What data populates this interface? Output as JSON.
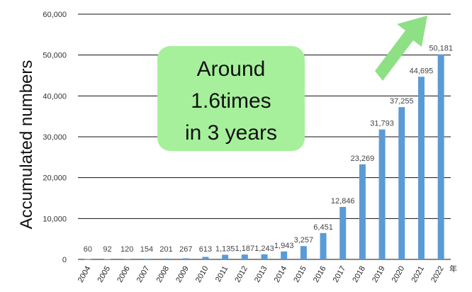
{
  "chart_data": {
    "type": "bar",
    "categories": [
      "2004",
      "2005",
      "2006",
      "2007",
      "2008",
      "2009",
      "2010",
      "2011",
      "2012",
      "2013",
      "2014",
      "2015",
      "2016",
      "2017",
      "2018",
      "2019",
      "2020",
      "2021",
      "2022"
    ],
    "values": [
      60,
      92,
      120,
      154,
      201,
      267,
      613,
      1135,
      1187,
      1243,
      1943,
      3257,
      6451,
      12846,
      23269,
      31793,
      37255,
      44695,
      50181
    ],
    "value_labels": [
      "60",
      "92",
      "120",
      "154",
      "201",
      "267",
      "613",
      "1,135",
      "1,187",
      "1,243",
      "1,943",
      "3,257",
      "6,451",
      "12,846",
      "23,269",
      "31,793",
      "37,255",
      "44,695",
      "50,181"
    ],
    "ylabel": "Accumulated numbers",
    "x_unit": "年",
    "ylim": [
      0,
      60000
    ],
    "yticks": [
      0,
      10000,
      20000,
      30000,
      40000,
      50000,
      60000
    ],
    "ytick_labels": [
      "0",
      "10,000",
      "20,000",
      "30,000",
      "40,000",
      "50,000",
      "60,000"
    ],
    "grid": true,
    "bar_color": "#5b9bd5",
    "callout": {
      "lines": [
        "Around",
        "1.6times",
        "in 3 years"
      ],
      "color": "#a6f09c"
    },
    "arrow_color": "#8ee085"
  }
}
